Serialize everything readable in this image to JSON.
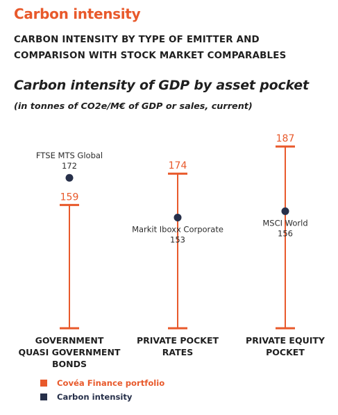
{
  "header": {
    "title": "Carbon intensity",
    "subtitle_line1": "CARBON INTENSITY BY TYPE OF EMITTER AND",
    "subtitle_line2": "COMPARISON WITH STOCK MARKET COMPARABLES"
  },
  "colors": {
    "accent": "#e8592b",
    "navy": "#27304a",
    "text": "#1f1f1f"
  },
  "chart_data": {
    "type": "dot-range",
    "title": "Carbon intensity of GDP by asset pocket",
    "subtitle": "(in tonnes of CO2e/M€ of GDP or sales, current)",
    "categories": [
      [
        "GOVERNMENT",
        "QUASI GOVERNMENT",
        "BONDS"
      ],
      [
        "PRIVATE POCKET",
        "RATES"
      ],
      [
        "PRIVATE EQUITY",
        "POCKET"
      ]
    ],
    "series": [
      {
        "name": "Covéa Finance  portfolio",
        "values": [
          159,
          174,
          187
        ]
      },
      {
        "name": "Carbon intensity",
        "values": [
          172,
          153,
          156
        ],
        "point_labels": [
          [
            "FTSE  MTS Global"
          ],
          [
            "Markit Iboxx Corporate"
          ],
          [
            "MSCI World"
          ]
        ]
      }
    ],
    "ylim": [
      100,
      195
    ],
    "grid": false,
    "legend_position": "bottom-left"
  }
}
